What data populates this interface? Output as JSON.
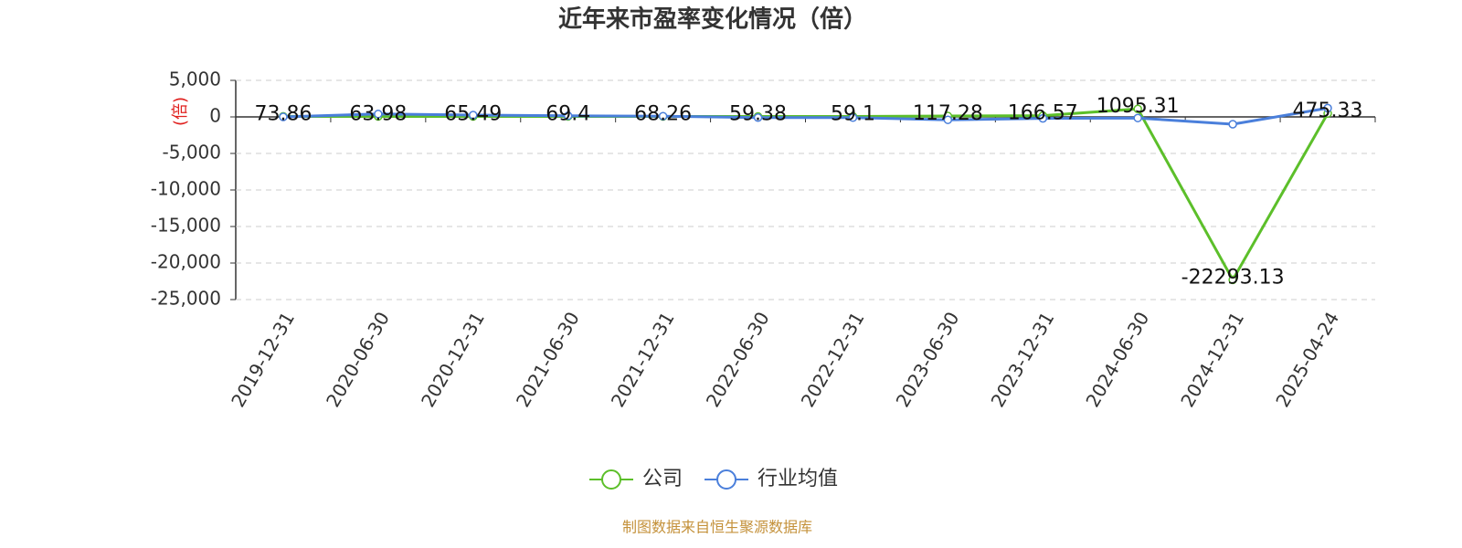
{
  "chart_data": {
    "type": "line",
    "title": "近年来市盈率变化情况（倍）",
    "y_label": "(倍)",
    "source": "制图数据来自恒生聚源数据库",
    "categories": [
      "2019-12-31",
      "2020-06-30",
      "2020-12-31",
      "2021-06-30",
      "2021-12-31",
      "2022-06-30",
      "2022-12-31",
      "2023-06-30",
      "2023-12-31",
      "2024-06-30",
      "2024-12-31",
      "2025-04-24"
    ],
    "series": [
      {
        "name": "公司",
        "color": "#5cbf2a",
        "values": [
          73.86,
          63.98,
          65.49,
          69.4,
          68.26,
          59.38,
          59.1,
          117.28,
          166.57,
          1095.31,
          -22293.13,
          475.33
        ],
        "show_labels": true
      },
      {
        "name": "行业均值",
        "color": "#4a7fdb",
        "values": [
          0,
          400,
          250,
          150,
          100,
          -100,
          -100,
          -400,
          -200,
          -150,
          -1000,
          1200
        ],
        "show_labels": false
      }
    ],
    "ylim": [
      -25000,
      5000
    ],
    "yticks": [
      {
        "value": 5000,
        "label": "5,000"
      },
      0,
      {
        "value": -5000,
        "label": "-5,000"
      },
      {
        "value": -10000,
        "label": "-10,000"
      },
      {
        "value": -15000,
        "label": "-15,000"
      },
      {
        "value": -20000,
        "label": "-20,000"
      },
      {
        "value": -25000,
        "label": "-25,000"
      }
    ],
    "grid": true
  }
}
